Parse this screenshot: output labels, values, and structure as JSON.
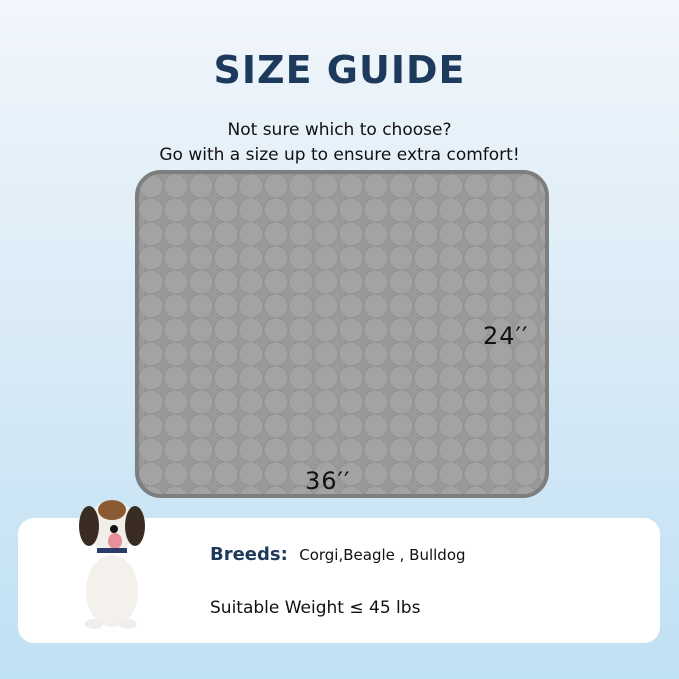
{
  "title": "SIZE GUIDE",
  "subtitle_1": "Not sure which to choose?",
  "subtitle_2": "Go with a size up to ensure extra comfort!",
  "mat": {
    "height_label": "24′′",
    "width_label": "36′′",
    "color": "#999999"
  },
  "info": {
    "breeds_label": "Breeds:",
    "breeds_value": "Corgi,Beagle , Bulldog",
    "weight": "Suitable Weight ≤ 45 lbs"
  },
  "colors": {
    "title": "#1d3a5c"
  }
}
